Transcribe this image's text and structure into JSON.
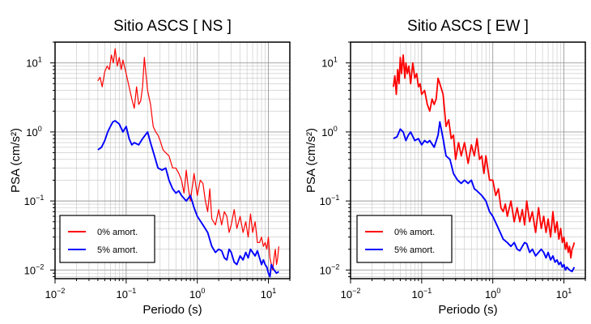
{
  "chart_data": [
    {
      "type": "line",
      "title": "Sitio ASCS [ NS ]",
      "xlabel": "Periodo (s)",
      "ylabel": "PSA (cm/s²)",
      "xscale": "log",
      "yscale": "log",
      "xlim": [
        0.01,
        20
      ],
      "ylim": [
        0.0075,
        20
      ],
      "grid": true,
      "legend_position": "bottom-left",
      "x_ticks": [
        {
          "value": 0.01,
          "base": "10",
          "exp": "−2"
        },
        {
          "value": 0.1,
          "base": "10",
          "exp": "−1"
        },
        {
          "value": 1,
          "base": "10",
          "exp": "0"
        },
        {
          "value": 10,
          "base": "10",
          "exp": "1"
        }
      ],
      "y_ticks": [
        {
          "value": 0.01,
          "base": "10",
          "exp": "−2"
        },
        {
          "value": 0.1,
          "base": "10",
          "exp": "−1"
        },
        {
          "value": 1,
          "base": "10",
          "exp": "0"
        },
        {
          "value": 10,
          "base": "10",
          "exp": "1"
        }
      ],
      "series": [
        {
          "name": "0% amort.",
          "color": "#ff0000",
          "x": [
            0.04,
            0.043,
            0.046,
            0.05,
            0.054,
            0.058,
            0.062,
            0.066,
            0.07,
            0.075,
            0.08,
            0.085,
            0.09,
            0.1,
            0.11,
            0.12,
            0.13,
            0.14,
            0.15,
            0.16,
            0.17,
            0.18,
            0.2,
            0.22,
            0.24,
            0.26,
            0.28,
            0.3,
            0.33,
            0.36,
            0.4,
            0.45,
            0.5,
            0.55,
            0.6,
            0.65,
            0.7,
            0.75,
            0.8,
            0.9,
            1.0,
            1.1,
            1.2,
            1.3,
            1.4,
            1.5,
            1.6,
            1.8,
            2.0,
            2.2,
            2.4,
            2.6,
            2.8,
            3.0,
            3.3,
            3.6,
            4.0,
            4.4,
            4.8,
            5.2,
            5.6,
            6.0,
            6.5,
            7.0,
            7.5,
            8.0,
            8.5,
            9.0,
            9.5,
            10,
            10.5,
            11,
            11.5,
            12,
            12.5,
            13,
            13.5,
            14
          ],
          "y": [
            5.5,
            6.2,
            4.5,
            7.5,
            9,
            8,
            13,
            10,
            16,
            9,
            12,
            8,
            11,
            7,
            4.5,
            3.0,
            2.2,
            4.5,
            2.5,
            2.8,
            4.5,
            12,
            4.0,
            2.5,
            1.2,
            1.0,
            0.9,
            0.75,
            0.55,
            0.5,
            0.45,
            0.3,
            0.3,
            0.25,
            0.2,
            0.13,
            0.28,
            0.15,
            0.1,
            0.25,
            0.12,
            0.2,
            0.18,
            0.1,
            0.07,
            0.15,
            0.055,
            0.045,
            0.075,
            0.045,
            0.07,
            0.06,
            0.035,
            0.045,
            0.075,
            0.04,
            0.06,
            0.035,
            0.05,
            0.03,
            0.065,
            0.035,
            0.05,
            0.025,
            0.025,
            0.03,
            0.022,
            0.025,
            0.02,
            0.03,
            0.015,
            0.012,
            0.01,
            0.015,
            0.02,
            0.012,
            0.015,
            0.022
          ]
        },
        {
          "name": "5% amort.",
          "color": "#0000ff",
          "x": [
            0.04,
            0.045,
            0.05,
            0.055,
            0.06,
            0.065,
            0.07,
            0.08,
            0.09,
            0.1,
            0.11,
            0.12,
            0.13,
            0.15,
            0.17,
            0.2,
            0.22,
            0.25,
            0.28,
            0.32,
            0.36,
            0.4,
            0.45,
            0.5,
            0.55,
            0.6,
            0.7,
            0.8,
            0.9,
            1.0,
            1.2,
            1.4,
            1.6,
            1.8,
            2.0,
            2.2,
            2.4,
            2.6,
            2.8,
            3.0,
            3.3,
            3.6,
            4.0,
            4.4,
            4.8,
            5.2,
            5.6,
            6.0,
            6.5,
            7.0,
            7.5,
            8.0,
            8.5,
            9.0,
            9.5,
            10,
            10.5,
            11,
            12,
            13,
            14
          ],
          "y": [
            0.55,
            0.6,
            0.75,
            1.0,
            1.2,
            1.4,
            1.45,
            1.3,
            1.0,
            1.2,
            0.8,
            0.65,
            0.7,
            0.65,
            0.8,
            1.0,
            0.7,
            0.45,
            0.3,
            0.28,
            0.3,
            0.2,
            0.15,
            0.13,
            0.14,
            0.12,
            0.1,
            0.12,
            0.08,
            0.06,
            0.045,
            0.035,
            0.022,
            0.018,
            0.02,
            0.019,
            0.015,
            0.014,
            0.02,
            0.018,
            0.013,
            0.012,
            0.016,
            0.014,
            0.018,
            0.015,
            0.02,
            0.018,
            0.016,
            0.019,
            0.015,
            0.012,
            0.014,
            0.012,
            0.011,
            0.009,
            0.008,
            0.012,
            0.01,
            0.009,
            0.0095
          ]
        }
      ]
    },
    {
      "type": "line",
      "title": "Sitio ASCS [ EW ]",
      "xlabel": "Periodo (s)",
      "ylabel": "PSA (cm/s²)",
      "xscale": "log",
      "yscale": "log",
      "xlim": [
        0.01,
        20
      ],
      "ylim": [
        0.0075,
        20
      ],
      "grid": true,
      "legend_position": "bottom-left",
      "x_ticks": [
        {
          "value": 0.01,
          "base": "10",
          "exp": "−2"
        },
        {
          "value": 0.1,
          "base": "10",
          "exp": "−1"
        },
        {
          "value": 1,
          "base": "10",
          "exp": "0"
        },
        {
          "value": 10,
          "base": "10",
          "exp": "1"
        }
      ],
      "y_ticks": [
        {
          "value": 0.01,
          "base": "10",
          "exp": "−2"
        },
        {
          "value": 0.1,
          "base": "10",
          "exp": "−1"
        },
        {
          "value": 1,
          "base": "10",
          "exp": "0"
        },
        {
          "value": 10,
          "base": "10",
          "exp": "1"
        }
      ],
      "series": [
        {
          "name": "0% amort.",
          "color": "#ff0000",
          "x": [
            0.04,
            0.042,
            0.044,
            0.046,
            0.048,
            0.05,
            0.052,
            0.055,
            0.058,
            0.06,
            0.063,
            0.066,
            0.07,
            0.075,
            0.08,
            0.085,
            0.09,
            0.095,
            0.1,
            0.11,
            0.12,
            0.13,
            0.14,
            0.15,
            0.16,
            0.17,
            0.18,
            0.2,
            0.22,
            0.24,
            0.26,
            0.28,
            0.3,
            0.33,
            0.36,
            0.4,
            0.45,
            0.5,
            0.55,
            0.6,
            0.65,
            0.7,
            0.75,
            0.8,
            0.9,
            1.0,
            1.1,
            1.2,
            1.3,
            1.4,
            1.5,
            1.6,
            1.8,
            2.0,
            2.2,
            2.4,
            2.6,
            2.8,
            3.0,
            3.3,
            3.6,
            4.0,
            4.4,
            4.8,
            5.2,
            5.6,
            6.0,
            6.5,
            7.0,
            7.5,
            8.0,
            8.5,
            9.0,
            9.5,
            10,
            10.5,
            11,
            11.5,
            12,
            12.5,
            13,
            13.5,
            14
          ],
          "y": [
            4.5,
            6.5,
            3.5,
            8,
            5,
            12,
            7,
            13,
            6,
            10,
            7,
            9,
            5,
            10,
            6,
            7,
            4.5,
            5,
            3.5,
            4,
            2.5,
            2,
            3,
            2.5,
            3,
            6,
            5,
            3.5,
            1.2,
            1.5,
            0.8,
            0.9,
            0.4,
            0.7,
            0.45,
            0.7,
            0.35,
            0.65,
            0.45,
            0.8,
            0.4,
            0.45,
            0.25,
            0.45,
            0.2,
            0.2,
            0.12,
            0.15,
            0.08,
            0.07,
            0.09,
            0.06,
            0.1,
            0.05,
            0.08,
            0.05,
            0.075,
            0.045,
            0.1,
            0.05,
            0.07,
            0.035,
            0.08,
            0.04,
            0.06,
            0.035,
            0.055,
            0.03,
            0.07,
            0.035,
            0.05,
            0.028,
            0.04,
            0.025,
            0.03,
            0.02,
            0.025,
            0.018,
            0.022,
            0.015,
            0.02,
            0.022,
            0.025
          ]
        },
        {
          "name": "5% amort.",
          "color": "#0000ff",
          "x": [
            0.04,
            0.045,
            0.05,
            0.055,
            0.06,
            0.065,
            0.07,
            0.08,
            0.09,
            0.1,
            0.11,
            0.12,
            0.13,
            0.15,
            0.17,
            0.18,
            0.2,
            0.22,
            0.25,
            0.28,
            0.32,
            0.36,
            0.4,
            0.45,
            0.5,
            0.55,
            0.6,
            0.7,
            0.8,
            0.9,
            1.0,
            1.2,
            1.4,
            1.6,
            1.8,
            2.0,
            2.2,
            2.4,
            2.6,
            2.8,
            3.0,
            3.3,
            3.6,
            4.0,
            4.4,
            4.8,
            5.2,
            5.6,
            6.0,
            6.5,
            7.0,
            7.5,
            8.0,
            8.5,
            9.0,
            9.5,
            10,
            10.5,
            11,
            12,
            13,
            14
          ],
          "y": [
            0.8,
            0.85,
            1.1,
            1.0,
            0.75,
            0.9,
            1.0,
            0.75,
            0.8,
            0.65,
            0.75,
            0.7,
            0.75,
            0.6,
            0.9,
            1.4,
            0.8,
            0.45,
            0.4,
            0.25,
            0.2,
            0.18,
            0.2,
            0.18,
            0.2,
            0.15,
            0.14,
            0.12,
            0.1,
            0.07,
            0.06,
            0.04,
            0.028,
            0.025,
            0.022,
            0.025,
            0.02,
            0.019,
            0.022,
            0.025,
            0.024,
            0.018,
            0.02,
            0.016,
            0.018,
            0.02,
            0.018,
            0.015,
            0.018,
            0.014,
            0.016,
            0.013,
            0.014,
            0.012,
            0.013,
            0.011,
            0.012,
            0.01,
            0.011,
            0.01,
            0.0095,
            0.011
          ]
        }
      ]
    }
  ]
}
